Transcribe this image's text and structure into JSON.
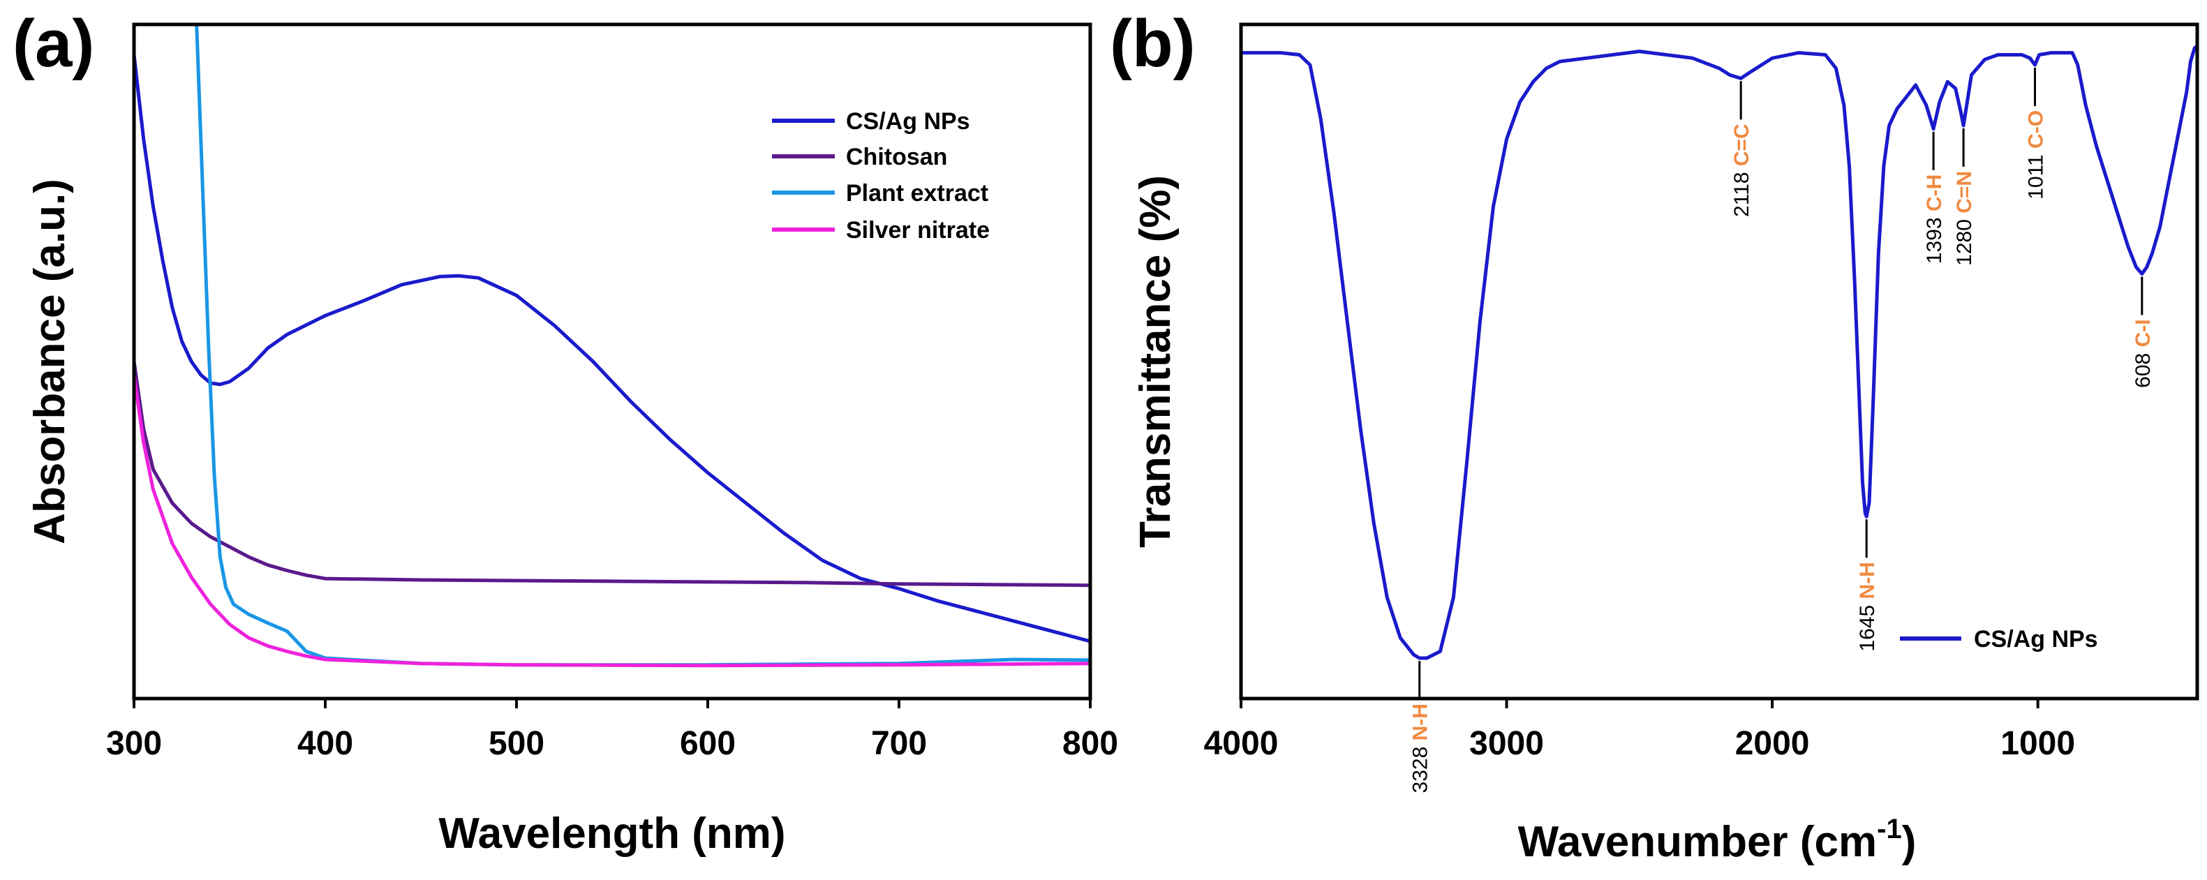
{
  "chart_data": [
    {
      "panel": "(a)",
      "type": "line",
      "title": "",
      "xlabel": "Wavelength (nm)",
      "ylabel": "Absorbance (a.u.)",
      "xlim": [
        300,
        800
      ],
      "ylim": [
        0,
        1
      ],
      "xticks": [
        300,
        400,
        500,
        600,
        700,
        800
      ],
      "yticks": [],
      "grid": false,
      "legend_position": "top-right",
      "series": [
        {
          "name": "CS/Ag NPs",
          "color": "#1a1acc",
          "points": [
            [
              300,
              0.955
            ],
            [
              305,
              0.83
            ],
            [
              310,
              0.73
            ],
            [
              315,
              0.65
            ],
            [
              320,
              0.58
            ],
            [
              325,
              0.53
            ],
            [
              330,
              0.5
            ],
            [
              335,
              0.48
            ],
            [
              340,
              0.468
            ],
            [
              345,
              0.466
            ],
            [
              350,
              0.47
            ],
            [
              360,
              0.49
            ],
            [
              370,
              0.52
            ],
            [
              380,
              0.54
            ],
            [
              400,
              0.568
            ],
            [
              420,
              0.59
            ],
            [
              440,
              0.614
            ],
            [
              460,
              0.626
            ],
            [
              470,
              0.627
            ],
            [
              480,
              0.624
            ],
            [
              500,
              0.598
            ],
            [
              520,
              0.553
            ],
            [
              540,
              0.5
            ],
            [
              560,
              0.44
            ],
            [
              580,
              0.385
            ],
            [
              600,
              0.335
            ],
            [
              620,
              0.29
            ],
            [
              640,
              0.245
            ],
            [
              660,
              0.205
            ],
            [
              680,
              0.178
            ],
            [
              700,
              0.163
            ],
            [
              720,
              0.145
            ],
            [
              740,
              0.13
            ],
            [
              760,
              0.115
            ],
            [
              780,
              0.1
            ],
            [
              800,
              0.085
            ]
          ]
        },
        {
          "name": "Chitosan",
          "color": "#5a1a8c",
          "points": [
            [
              300,
              0.5
            ],
            [
              305,
              0.4
            ],
            [
              310,
              0.34
            ],
            [
              320,
              0.29
            ],
            [
              330,
              0.26
            ],
            [
              340,
              0.24
            ],
            [
              350,
              0.225
            ],
            [
              360,
              0.21
            ],
            [
              370,
              0.198
            ],
            [
              380,
              0.19
            ],
            [
              390,
              0.183
            ],
            [
              400,
              0.178
            ],
            [
              450,
              0.176
            ],
            [
              500,
              0.175
            ],
            [
              550,
              0.174
            ],
            [
              600,
              0.173
            ],
            [
              650,
              0.172
            ],
            [
              700,
              0.17
            ],
            [
              750,
              0.169
            ],
            [
              800,
              0.168
            ]
          ]
        },
        {
          "name": "Plant extract",
          "color": "#1a96e6",
          "points": [
            [
              330,
              1.2
            ],
            [
              333,
              0.98
            ],
            [
              336,
              0.75
            ],
            [
              339,
              0.52
            ],
            [
              342,
              0.33
            ],
            [
              345,
              0.21
            ],
            [
              348,
              0.165
            ],
            [
              352,
              0.14
            ],
            [
              360,
              0.125
            ],
            [
              370,
              0.112
            ],
            [
              380,
              0.1
            ],
            [
              385,
              0.085
            ],
            [
              390,
              0.07
            ],
            [
              400,
              0.06
            ],
            [
              450,
              0.052
            ],
            [
              500,
              0.05
            ],
            [
              600,
              0.05
            ],
            [
              700,
              0.052
            ],
            [
              760,
              0.058
            ],
            [
              800,
              0.057
            ]
          ]
        },
        {
          "name": "Silver nitrate",
          "color": "#ee22dd",
          "points": [
            [
              300,
              0.48
            ],
            [
              305,
              0.38
            ],
            [
              310,
              0.31
            ],
            [
              320,
              0.23
            ],
            [
              330,
              0.18
            ],
            [
              340,
              0.14
            ],
            [
              350,
              0.11
            ],
            [
              360,
              0.09
            ],
            [
              370,
              0.078
            ],
            [
              380,
              0.07
            ],
            [
              390,
              0.063
            ],
            [
              400,
              0.058
            ],
            [
              450,
              0.052
            ],
            [
              500,
              0.05
            ],
            [
              600,
              0.049
            ],
            [
              700,
              0.05
            ],
            [
              800,
              0.052
            ]
          ]
        }
      ]
    },
    {
      "panel": "(b)",
      "type": "line",
      "title": "",
      "xlabel": "Wavenumber (cm",
      "xlabel_superscript": "-1",
      "xlabel_suffix": ")",
      "ylabel": "Transmittance (%)",
      "xlim": [
        4000,
        400
      ],
      "ylim": [
        0,
        1
      ],
      "xticks": [
        4000,
        3000,
        2000,
        1000
      ],
      "yticks": [],
      "grid": false,
      "legend_position": "bottom-right",
      "series": [
        {
          "name": "CS/Ag NPs",
          "color": "#1a1acc",
          "points": [
            [
              4000,
              0.958
            ],
            [
              3850,
              0.958
            ],
            [
              3780,
              0.955
            ],
            [
              3740,
              0.94
            ],
            [
              3700,
              0.86
            ],
            [
              3650,
              0.72
            ],
            [
              3600,
              0.56
            ],
            [
              3550,
              0.4
            ],
            [
              3500,
              0.26
            ],
            [
              3450,
              0.15
            ],
            [
              3400,
              0.09
            ],
            [
              3350,
              0.065
            ],
            [
              3328,
              0.06
            ],
            [
              3300,
              0.06
            ],
            [
              3250,
              0.07
            ],
            [
              3200,
              0.15
            ],
            [
              3150,
              0.35
            ],
            [
              3100,
              0.56
            ],
            [
              3050,
              0.73
            ],
            [
              3000,
              0.83
            ],
            [
              2950,
              0.885
            ],
            [
              2900,
              0.915
            ],
            [
              2850,
              0.935
            ],
            [
              2800,
              0.945
            ],
            [
              2700,
              0.95
            ],
            [
              2500,
              0.96
            ],
            [
              2300,
              0.95
            ],
            [
              2200,
              0.935
            ],
            [
              2160,
              0.925
            ],
            [
              2118,
              0.92
            ],
            [
              2080,
              0.93
            ],
            [
              2000,
              0.95
            ],
            [
              1900,
              0.958
            ],
            [
              1800,
              0.955
            ],
            [
              1760,
              0.935
            ],
            [
              1730,
              0.88
            ],
            [
              1710,
              0.79
            ],
            [
              1690,
              0.62
            ],
            [
              1670,
              0.42
            ],
            [
              1660,
              0.32
            ],
            [
              1650,
              0.275
            ],
            [
              1645,
              0.27
            ],
            [
              1635,
              0.29
            ],
            [
              1620,
              0.44
            ],
            [
              1600,
              0.66
            ],
            [
              1580,
              0.79
            ],
            [
              1560,
              0.85
            ],
            [
              1530,
              0.875
            ],
            [
              1500,
              0.89
            ],
            [
              1460,
              0.91
            ],
            [
              1420,
              0.88
            ],
            [
              1393,
              0.845
            ],
            [
              1370,
              0.885
            ],
            [
              1340,
              0.915
            ],
            [
              1310,
              0.905
            ],
            [
              1290,
              0.87
            ],
            [
              1280,
              0.85
            ],
            [
              1270,
              0.875
            ],
            [
              1250,
              0.925
            ],
            [
              1200,
              0.948
            ],
            [
              1150,
              0.955
            ],
            [
              1060,
              0.955
            ],
            [
              1030,
              0.95
            ],
            [
              1011,
              0.94
            ],
            [
              995,
              0.955
            ],
            [
              950,
              0.958
            ],
            [
              870,
              0.958
            ],
            [
              850,
              0.94
            ],
            [
              820,
              0.88
            ],
            [
              780,
              0.82
            ],
            [
              740,
              0.77
            ],
            [
              700,
              0.72
            ],
            [
              660,
              0.67
            ],
            [
              630,
              0.64
            ],
            [
              608,
              0.63
            ],
            [
              590,
              0.64
            ],
            [
              570,
              0.66
            ],
            [
              540,
              0.7
            ],
            [
              510,
              0.76
            ],
            [
              480,
              0.82
            ],
            [
              460,
              0.86
            ],
            [
              440,
              0.9
            ],
            [
              425,
              0.945
            ],
            [
              410,
              0.965
            ],
            [
              400,
              0.968
            ]
          ]
        }
      ],
      "peaks": [
        {
          "wavenumber": "3328",
          "bond": "N-H",
          "position": "below"
        },
        {
          "wavenumber": "2118",
          "bond": "C=C",
          "position": "below"
        },
        {
          "wavenumber": "1645",
          "bond": "N-H",
          "position": "below"
        },
        {
          "wavenumber": "1393",
          "bond": "C-H",
          "position": "below"
        },
        {
          "wavenumber": "1280",
          "bond": "C=N",
          "position": "below"
        },
        {
          "wavenumber": "1011",
          "bond": "C-O",
          "position": "below"
        },
        {
          "wavenumber": "608",
          "bond": "C-I",
          "position": "below"
        }
      ],
      "annotation_color": "#f08a40"
    }
  ]
}
